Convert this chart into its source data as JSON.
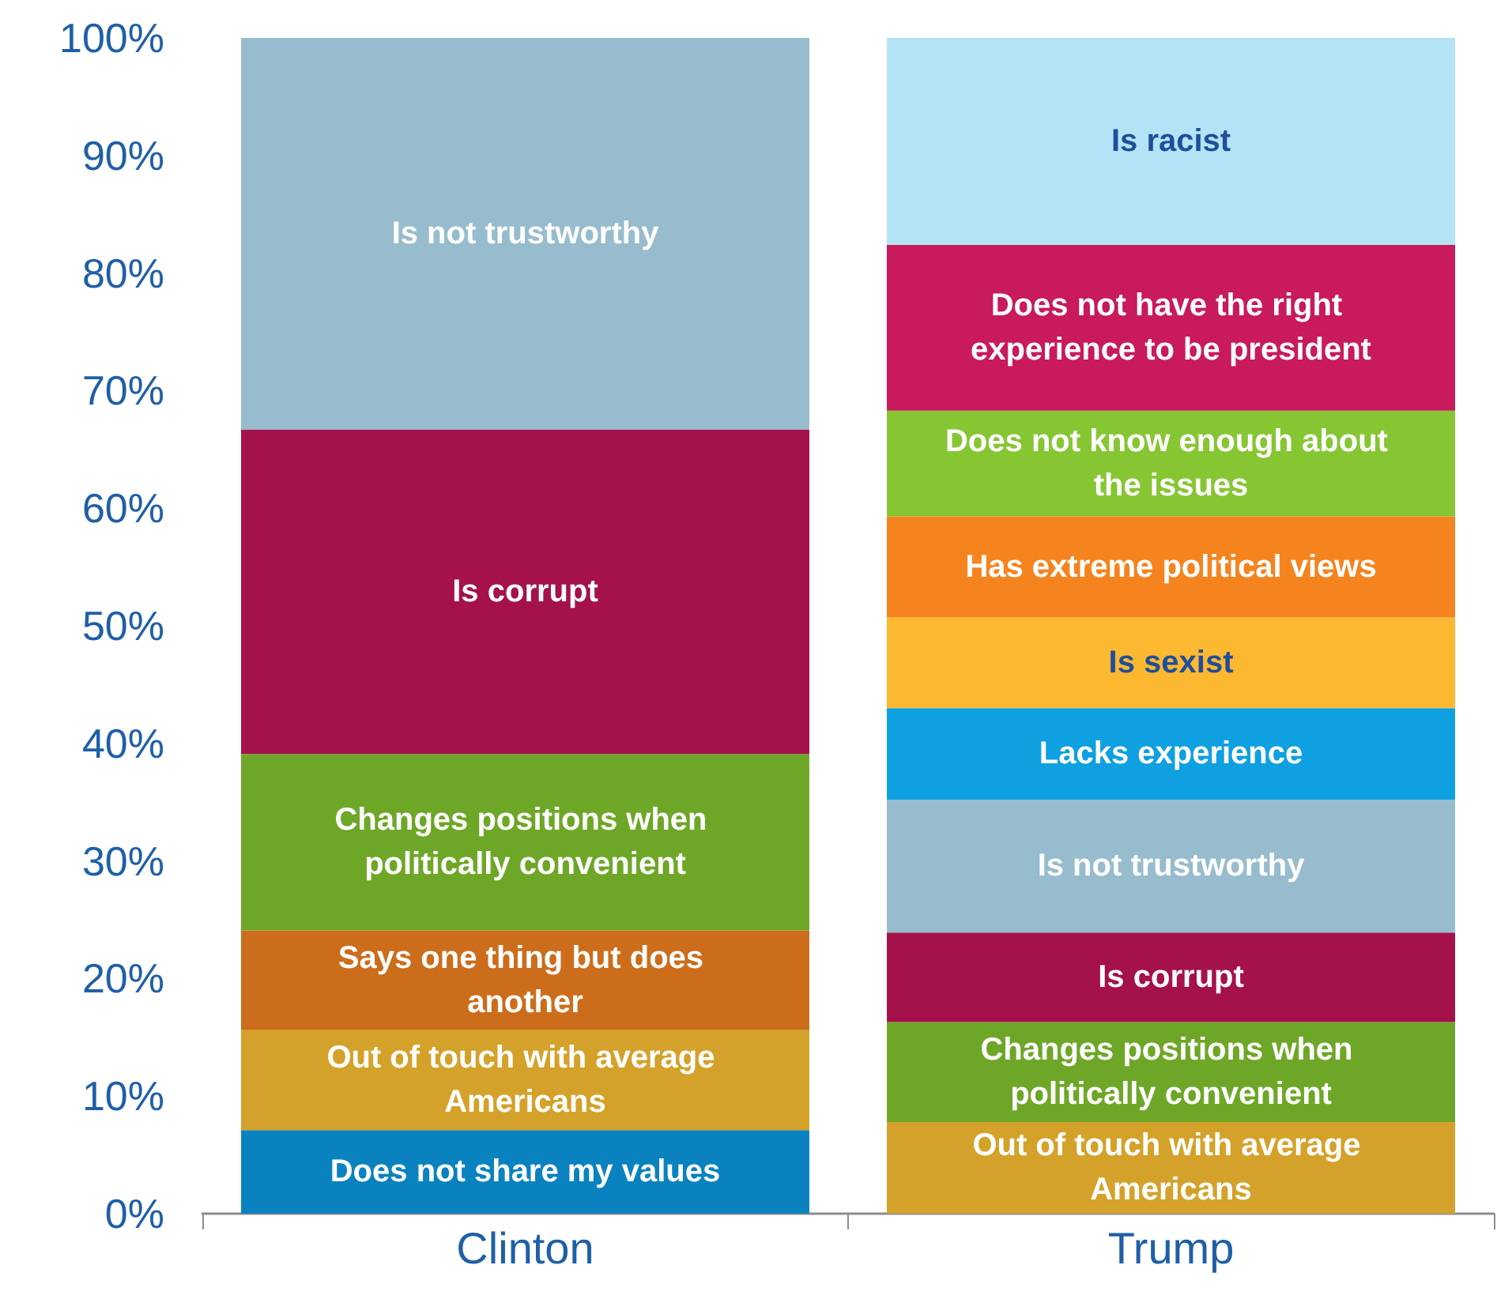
{
  "chart_data": {
    "type": "bar",
    "stacked": true,
    "categories": [
      "Clinton",
      "Trump"
    ],
    "ylim": [
      0,
      100
    ],
    "yticks": [
      {
        "value": 0,
        "label": "0%"
      },
      {
        "value": 10,
        "label": "10%"
      },
      {
        "value": 20,
        "label": "20%"
      },
      {
        "value": 30,
        "label": "30%"
      },
      {
        "value": 40,
        "label": "40%"
      },
      {
        "value": 50,
        "label": "50%"
      },
      {
        "value": 60,
        "label": "60%"
      },
      {
        "value": 70,
        "label": "70%"
      },
      {
        "value": 80,
        "label": "80%"
      },
      {
        "value": 90,
        "label": "90%"
      },
      {
        "value": 100,
        "label": "100%"
      }
    ],
    "grid": false,
    "legend": false,
    "series": [
      {
        "name": "Does not share my values",
        "color": "#0a82c0",
        "values": [
          7.1,
          null
        ]
      },
      {
        "name": "Out of touch with average Americans",
        "color": "#d4a22a",
        "values": [
          8.5,
          7.8
        ]
      },
      {
        "name": "Says one thing but does another",
        "color": "#cc6d1b",
        "values": [
          8.5,
          null
        ]
      },
      {
        "name": "Changes positions when politically convenient",
        "color": "#6ea727",
        "values": [
          15.0,
          8.5
        ]
      },
      {
        "name": "Is corrupt",
        "color": "#a4114b",
        "values": [
          27.6,
          7.6
        ]
      },
      {
        "name": "Is not trustworthy",
        "color": "#97bccd",
        "values": [
          33.3,
          11.3
        ]
      },
      {
        "name": "Lacks experience",
        "color": "#0ea0e0",
        "values": [
          null,
          7.8
        ]
      },
      {
        "name": "Is sexist",
        "color": "#fbb830",
        "values": [
          null,
          7.7
        ]
      },
      {
        "name": "Has extreme political views",
        "color": "#f5841f",
        "values": [
          null,
          8.6
        ]
      },
      {
        "name": "Does not know enough about the issues",
        "color": "#86c633",
        "values": [
          null,
          9.0
        ]
      },
      {
        "name": "Does not have the right experience to be president",
        "color": "#c81a5c",
        "values": [
          null,
          14.1
        ]
      },
      {
        "name": "Is racist",
        "color": "#b3e3f5",
        "values": [
          null,
          17.6
        ]
      }
    ]
  }
}
